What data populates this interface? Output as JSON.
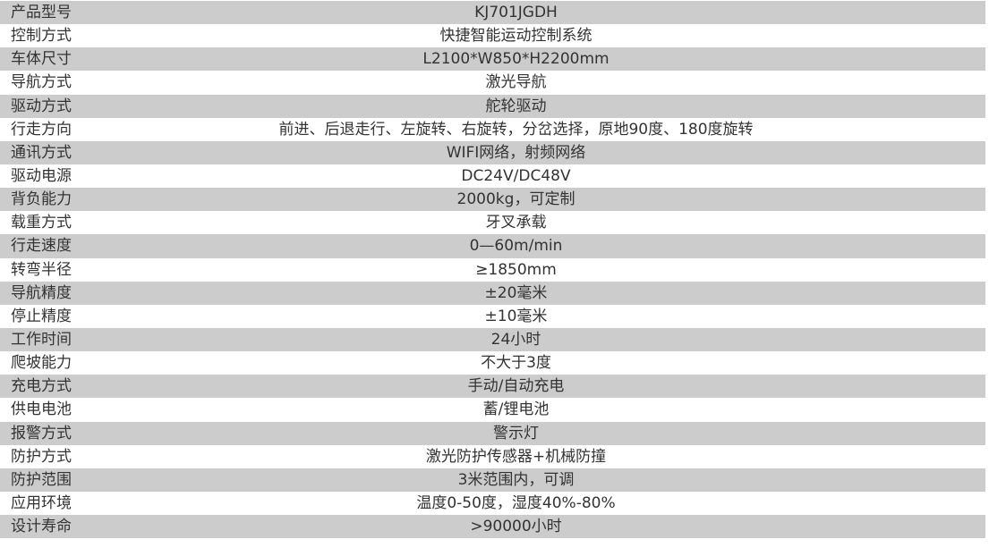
{
  "specs": [
    {
      "label": "产品型号",
      "value": "KJ701JGDH"
    },
    {
      "label": "控制方式",
      "value": "快捷智能运动控制系统"
    },
    {
      "label": "车体尺寸",
      "value": "L2100*W850*H2200mm"
    },
    {
      "label": "导航方式",
      "value": "激光导航"
    },
    {
      "label": "驱动方式",
      "value": "舵轮驱动"
    },
    {
      "label": "行走方向",
      "value": "前进、后退走行、左旋转、右旋转，分岔选择，原地90度、180度旋转"
    },
    {
      "label": "通讯方式",
      "value": "WIFI网络，射频网络"
    },
    {
      "label": "驱动电源",
      "value": "DC24V/DC48V"
    },
    {
      "label": "背负能力",
      "value": "2000kg，可定制"
    },
    {
      "label": "载重方式",
      "value": "牙叉承载"
    },
    {
      "label": "行走速度",
      "value": "0—60m/min"
    },
    {
      "label": "转弯半径",
      "value": "≥1850mm"
    },
    {
      "label": "导航精度",
      "value": "±20毫米"
    },
    {
      "label": "停止精度",
      "value": "±10毫米"
    },
    {
      "label": "工作时间",
      "value": "24小时"
    },
    {
      "label": "爬坡能力",
      "value": "不大于3度"
    },
    {
      "label": "充电方式",
      "value": "手动/自动充电"
    },
    {
      "label": "供电电池",
      "value": "蓄/锂电池"
    },
    {
      "label": "报警方式",
      "value": "警示灯"
    },
    {
      "label": "防护方式",
      "value": "激光防护传感器+机械防撞"
    },
    {
      "label": "防护范围",
      "value": "3米范围内，可调"
    },
    {
      "label": "应用环境",
      "value": "温度0-50度，湿度40%-80%"
    },
    {
      "label": "设计寿命",
      "value": ">90000小时"
    }
  ],
  "colors": {
    "row_stripe": "#cccccc",
    "row_plain": "#ffffff",
    "text": "#333333"
  }
}
